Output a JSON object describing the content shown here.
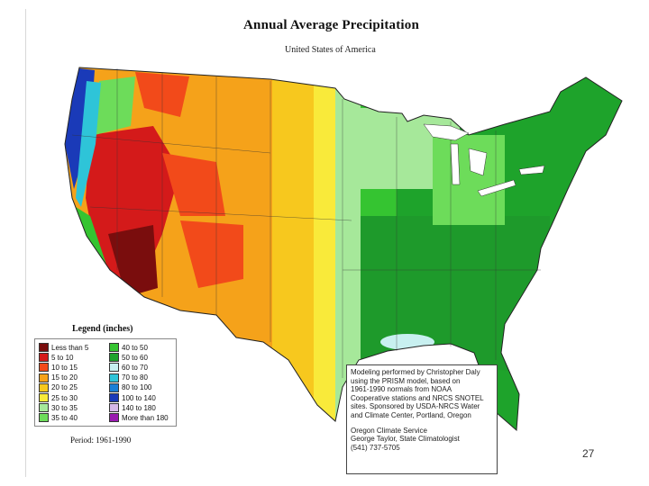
{
  "title": "Annual Average Precipitation",
  "subtitle": "United States of America",
  "legend": {
    "title": "Legend (inches)",
    "items": [
      {
        "label": "Less than 5",
        "color": "#7a0d0d"
      },
      {
        "label": "5 to 10",
        "color": "#d41a1a"
      },
      {
        "label": "10 to 15",
        "color": "#f24a1a"
      },
      {
        "label": "15 to 20",
        "color": "#f5a21a"
      },
      {
        "label": "20 to 25",
        "color": "#f7c81e"
      },
      {
        "label": "25 to 30",
        "color": "#f9ea3a"
      },
      {
        "label": "30 to 35",
        "color": "#a6e89a"
      },
      {
        "label": "35 to 40",
        "color": "#6ddc5a"
      },
      {
        "label": "40 to 50",
        "color": "#35c431"
      },
      {
        "label": "50 to 60",
        "color": "#1ea32b"
      },
      {
        "label": "60 to 70",
        "color": "#c8f0f0"
      },
      {
        "label": "70 to 80",
        "color": "#2ec4d8"
      },
      {
        "label": "80 to 100",
        "color": "#1a7fd6"
      },
      {
        "label": "100 to 140",
        "color": "#1a3ab8"
      },
      {
        "label": "140 to 180",
        "color": "#d6b8e8"
      },
      {
        "label": "More than 180",
        "color": "#9a1ab0"
      }
    ]
  },
  "period": "Period: 1961-1990",
  "credits": {
    "lines": [
      "Modeling performed by Christopher Daly",
      "using the PRISM model, based on",
      "1961-1990 normals from NOAA",
      "Cooperative stations and NRCS SNOTEL",
      "sites. Sponsored by USDA-NRCS Water",
      "and Climate Center, Portland, Oregon"
    ],
    "service_lines": [
      "Oregon Climate Service",
      "George Taylor, State Climatologist",
      "(541) 737-5705"
    ]
  },
  "page_number": "27"
}
